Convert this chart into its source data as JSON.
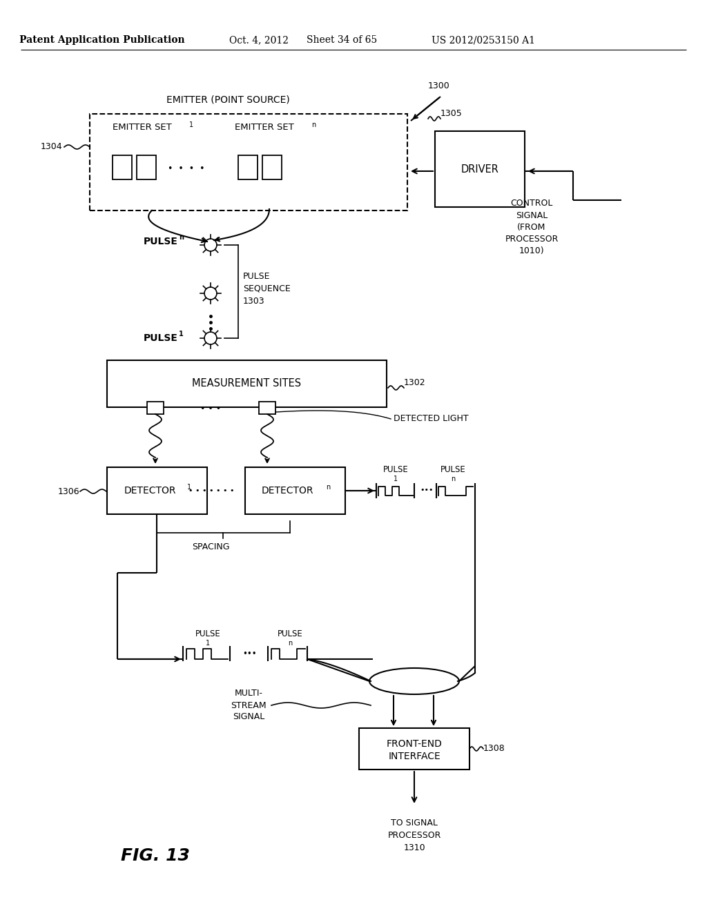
{
  "bg_color": "#ffffff",
  "line_color": "#000000",
  "header_left": "Patent Application Publication",
  "header_mid1": "Oct. 4, 2012",
  "header_mid2": "Sheet 34 of 65",
  "header_right": "US 2012/0253150 A1",
  "fig_label": "FIG. 13"
}
